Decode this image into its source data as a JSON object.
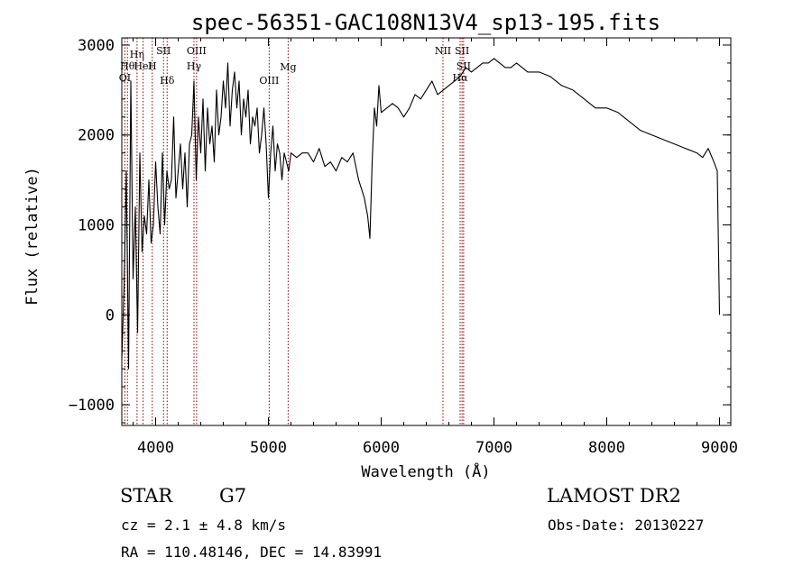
{
  "chart_data": {
    "type": "line",
    "title": "spec-56351-GAC108N13V4_sp13-195.fits",
    "xlabel": "Wavelength (Å)",
    "ylabel": "Flux (relative)",
    "xlim": [
      3700,
      9100
    ],
    "ylim": [
      -1230,
      3080
    ],
    "xticks": [
      4000,
      5000,
      6000,
      7000,
      8000,
      9000
    ],
    "yticks": [
      -1000,
      0,
      1000,
      2000,
      3000
    ],
    "grid": false,
    "series": [
      {
        "x": [
          3700,
          3720,
          3740,
          3760,
          3780,
          3800,
          3820,
          3840,
          3860,
          3880,
          3900,
          3920,
          3940,
          3960,
          3980,
          4000,
          4020,
          4040,
          4060,
          4080,
          4100,
          4120,
          4140,
          4160,
          4180,
          4200,
          4220,
          4240,
          4260,
          4280,
          4300,
          4320,
          4340,
          4360,
          4380,
          4400,
          4420,
          4440,
          4460,
          4480,
          4500,
          4520,
          4540,
          4560,
          4580,
          4600,
          4620,
          4640,
          4660,
          4680,
          4700,
          4720,
          4740,
          4760,
          4780,
          4800,
          4820,
          4840,
          4860,
          4880,
          4900,
          4920,
          4940,
          4960,
          4980,
          5000,
          5020,
          5040,
          5060,
          5080,
          5100,
          5120,
          5140,
          5160,
          5180,
          5200,
          5250,
          5300,
          5350,
          5400,
          5450,
          5500,
          5550,
          5600,
          5650,
          5700,
          5750,
          5800,
          5850,
          5880,
          5900,
          5920,
          5940,
          5960,
          5980,
          6000,
          6050,
          6100,
          6150,
          6200,
          6250,
          6300,
          6350,
          6400,
          6450,
          6500,
          6550,
          6600,
          6650,
          6700,
          6750,
          6800,
          6850,
          6900,
          6950,
          7000,
          7050,
          7100,
          7150,
          7200,
          7300,
          7400,
          7500,
          7600,
          7700,
          7800,
          7900,
          8000,
          8100,
          8200,
          8300,
          8400,
          8500,
          8600,
          8700,
          8800,
          8850,
          8900,
          8950,
          8980,
          9000
        ],
        "y": [
          -500,
          300,
          1600,
          -600,
          2600,
          400,
          1200,
          -200,
          1800,
          700,
          1100,
          900,
          1500,
          800,
          1000,
          1700,
          1200,
          900,
          1800,
          1000,
          1600,
          1400,
          1500,
          2200,
          1300,
          1600,
          1900,
          1400,
          1800,
          1200,
          1900,
          2000,
          2600,
          1500,
          2200,
          1800,
          2400,
          1600,
          2300,
          1900,
          2100,
          1700,
          2500,
          2000,
          2200,
          2600,
          2300,
          2800,
          2100,
          2500,
          2700,
          2300,
          2600,
          2000,
          2400,
          2200,
          2500,
          1900,
          2200,
          2100,
          2300,
          1800,
          2000,
          2300,
          1900,
          1300,
          1800,
          2100,
          1600,
          1900,
          1800,
          1500,
          1800,
          1700,
          1600,
          1800,
          1750,
          1800,
          1800,
          1700,
          1850,
          1650,
          1700,
          1600,
          1750,
          1700,
          1800,
          1500,
          1300,
          1100,
          850,
          1700,
          2300,
          2100,
          2550,
          2250,
          2300,
          2350,
          2300,
          2200,
          2300,
          2450,
          2400,
          2500,
          2600,
          2450,
          2500,
          2550,
          2600,
          2650,
          2750,
          2700,
          2750,
          2800,
          2800,
          2850,
          2800,
          2750,
          2750,
          2800,
          2700,
          2700,
          2650,
          2550,
          2500,
          2400,
          2300,
          2300,
          2250,
          2150,
          2050,
          2000,
          1950,
          1900,
          1850,
          1800,
          1750,
          1850,
          1700,
          1600,
          0
        ]
      }
    ],
    "line_ids": [
      {
        "label": "OI",
        "wavelength": 3727
      },
      {
        "label": "Hθ",
        "wavelength": 3750
      },
      {
        "label": "Hη",
        "wavelength": 3835
      },
      {
        "label": "HeI",
        "wavelength": 3889
      },
      {
        "label": "H",
        "wavelength": 3970
      },
      {
        "label": "SII",
        "wavelength": 4070
      },
      {
        "label": "Hδ",
        "wavelength": 4102
      },
      {
        "label": "OIII",
        "wavelength": 4363
      },
      {
        "label": "Hγ",
        "wavelength": 4340
      },
      {
        "label": "OIII",
        "wavelength": 5007
      },
      {
        "label": "Mg",
        "wavelength": 5175
      },
      {
        "label": "NII",
        "wavelength": 6548
      },
      {
        "label": "SII",
        "wavelength": 6717
      },
      {
        "label": "SII",
        "wavelength": 6731
      },
      {
        "label": "Hα",
        "wavelength": 6700
      }
    ]
  },
  "info": {
    "object_class": "STAR",
    "subclass": "G7",
    "survey": "LAMOST DR2",
    "cz": "cz = 2.1 ± 4.8 km/s",
    "obs_date": "Obs-Date: 20130227",
    "coords": "RA = 110.48146, DEC =  14.83991"
  },
  "colors": {
    "axes": "#000000",
    "spectrum": "#000000",
    "line_markers": "#8b0000"
  }
}
